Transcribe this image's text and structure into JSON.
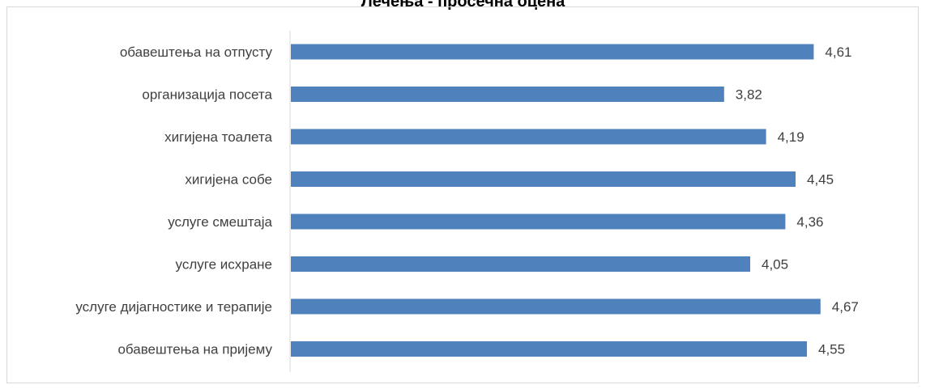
{
  "chart_data": {
    "type": "bar",
    "orientation": "horizontal",
    "title": "Лечења - просечна оцена",
    "categories": [
      "обавештења на отпусту",
      "организација посета",
      "хигијена тоалета",
      "хигијена собе",
      "услуге смештаја",
      "услуге исхране",
      "услуге дијагностике и терапије",
      "обавештења на пријему"
    ],
    "values": [
      4.61,
      3.82,
      4.19,
      4.45,
      4.36,
      4.05,
      4.67,
      4.55
    ],
    "value_labels": [
      "4,61",
      "3,82",
      "4,19",
      "4,45",
      "4,36",
      "4,05",
      "4,67",
      "4,55"
    ],
    "xlim": [
      0,
      5.4
    ],
    "grid": false,
    "legend": "none",
    "colors": {
      "bar": "#4f81bd",
      "axis": "#d9d9d9",
      "text": "#404040"
    }
  }
}
